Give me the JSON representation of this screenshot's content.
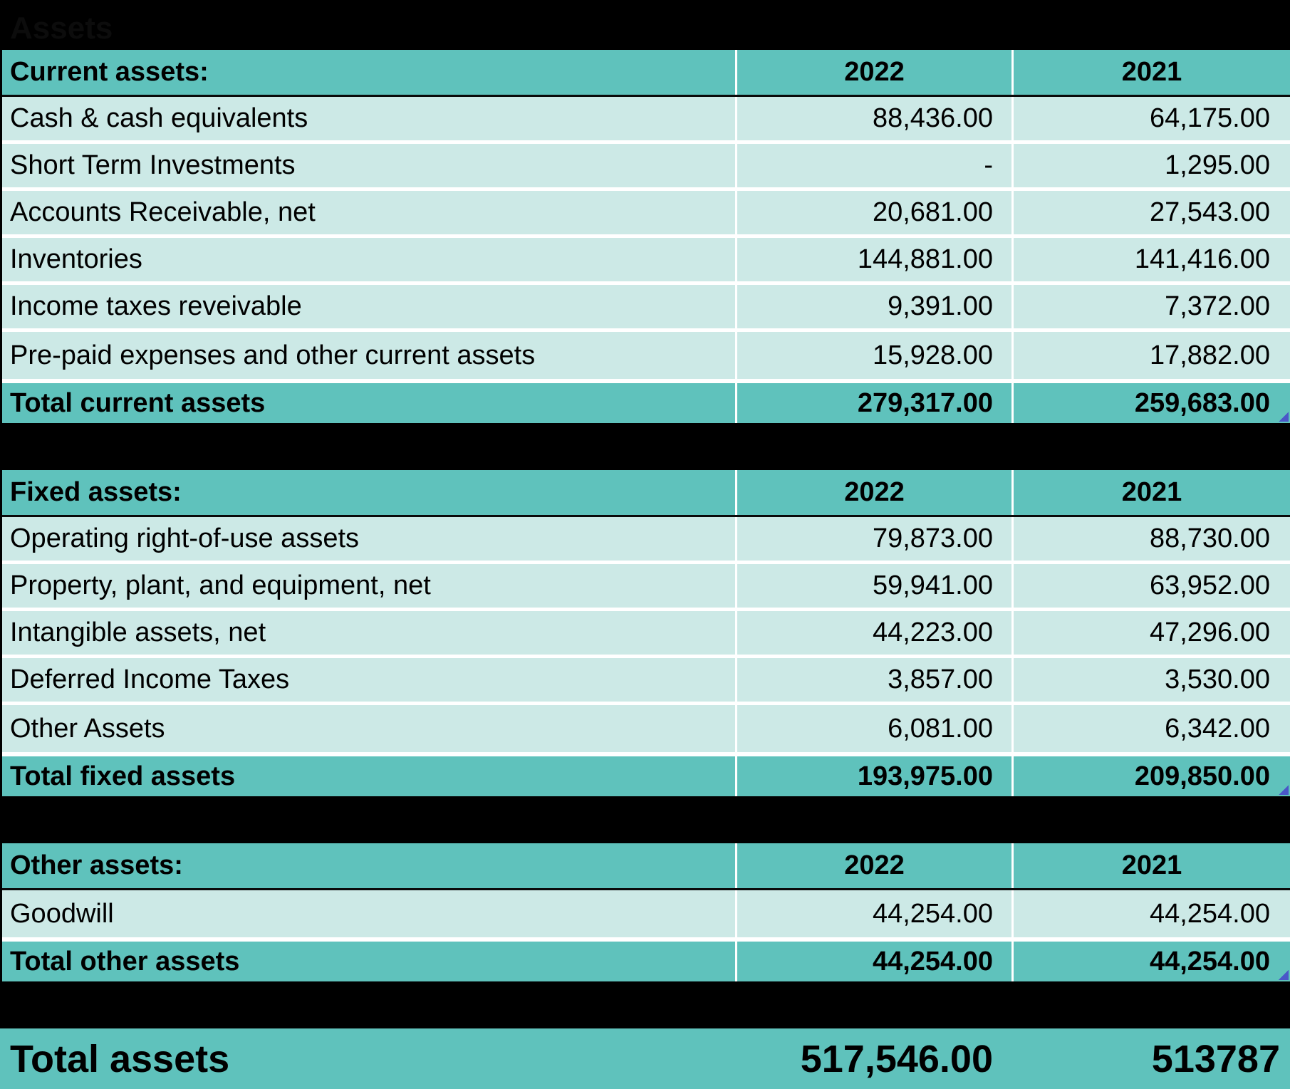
{
  "title": "Assets",
  "current": {
    "header": {
      "label": "Current assets:",
      "y1": "2022",
      "y2": "2021"
    },
    "items": [
      {
        "label": "Cash & cash equivalents",
        "y1": "88,436.00",
        "y2": "64,175.00"
      },
      {
        "label": "Short Term Investments",
        "y1": "-",
        "y2": "1,295.00"
      },
      {
        "label": "Accounts Receivable, net",
        "y1": "20,681.00",
        "y2": "27,543.00"
      },
      {
        "label": "Inventories",
        "y1": "144,881.00",
        "y2": "141,416.00"
      },
      {
        "label": "Income taxes reveivable",
        "y1": "9,391.00",
        "y2": "7,372.00"
      },
      {
        "label": "Pre-paid expenses and other current assets",
        "y1": "15,928.00",
        "y2": "17,882.00"
      }
    ],
    "total": {
      "label": "Total current assets",
      "y1": "279,317.00",
      "y2": "259,683.00"
    }
  },
  "fixed": {
    "header": {
      "label": "Fixed assets:",
      "y1": "2022",
      "y2": "2021"
    },
    "items": [
      {
        "label": "Operating right-of-use assets",
        "y1": "79,873.00",
        "y2": "88,730.00"
      },
      {
        "label": "Property, plant, and equipment, net",
        "y1": "59,941.00",
        "y2": "63,952.00"
      },
      {
        "label": "Intangible assets, net",
        "y1": "44,223.00",
        "y2": "47,296.00"
      },
      {
        "label": "Deferred Income Taxes",
        "y1": "3,857.00",
        "y2": "3,530.00"
      },
      {
        "label": "Other Assets",
        "y1": "6,081.00",
        "y2": "6,342.00"
      }
    ],
    "total": {
      "label": "Total fixed assets",
      "y1": "193,975.00",
      "y2": "209,850.00"
    }
  },
  "other": {
    "header": {
      "label": "Other assets:",
      "y1": "2022",
      "y2": "2021"
    },
    "items": [
      {
        "label": "Goodwill",
        "y1": "44,254.00",
        "y2": "44,254.00"
      }
    ],
    "total": {
      "label": "Total other assets",
      "y1": "44,254.00",
      "y2": "44,254.00"
    }
  },
  "grand_total": {
    "label": "Total assets",
    "y1": "517,546.00",
    "y2": "513787"
  }
}
